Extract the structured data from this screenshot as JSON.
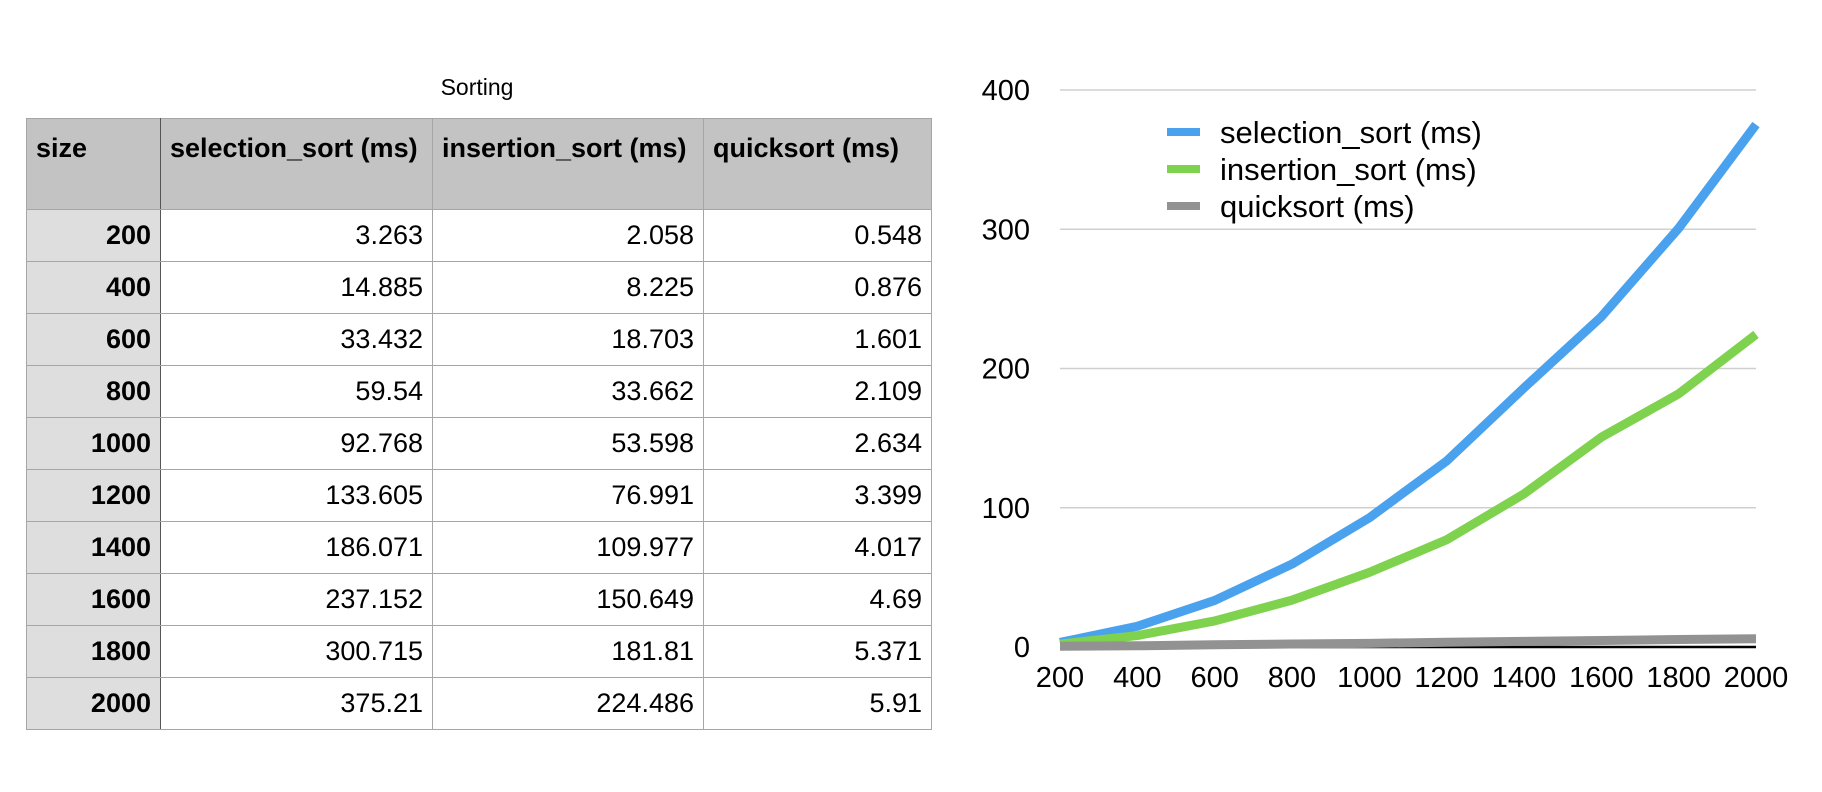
{
  "table": {
    "title": "Sorting",
    "headers": [
      "size",
      "selection_sort (ms)",
      "insertion_sort (ms)",
      "quicksort (ms)"
    ],
    "rows": [
      [
        "200",
        "3.263",
        "2.058",
        "0.548"
      ],
      [
        "400",
        "14.885",
        "8.225",
        "0.876"
      ],
      [
        "600",
        "33.432",
        "18.703",
        "1.601"
      ],
      [
        "800",
        "59.54",
        "33.662",
        "2.109"
      ],
      [
        "1000",
        "92.768",
        "53.598",
        "2.634"
      ],
      [
        "1200",
        "133.605",
        "76.991",
        "3.399"
      ],
      [
        "1400",
        "186.071",
        "109.977",
        "4.017"
      ],
      [
        "1600",
        "237.152",
        "150.649",
        "4.69"
      ],
      [
        "1800",
        "300.715",
        "181.81",
        "5.371"
      ],
      [
        "2000",
        "375.21",
        "224.486",
        "5.91"
      ]
    ]
  },
  "chart_data": {
    "type": "line",
    "x": [
      200,
      400,
      600,
      800,
      1000,
      1200,
      1400,
      1600,
      1800,
      2000
    ],
    "series": [
      {
        "name": "selection_sort (ms)",
        "color": "#4aa2ee",
        "values": [
          3.263,
          14.885,
          33.432,
          59.54,
          92.768,
          133.605,
          186.071,
          237.152,
          300.715,
          375.21
        ]
      },
      {
        "name": "insertion_sort (ms)",
        "color": "#7ed24e",
        "values": [
          2.058,
          8.225,
          18.703,
          33.662,
          53.598,
          76.991,
          109.977,
          150.649,
          181.81,
          224.486
        ]
      },
      {
        "name": "quicksort (ms)",
        "color": "#929292",
        "values": [
          0.548,
          0.876,
          1.601,
          2.109,
          2.634,
          3.399,
          4.017,
          4.69,
          5.371,
          5.91
        ]
      }
    ],
    "xlim": [
      200,
      2000
    ],
    "ylim": [
      0,
      400
    ],
    "yticks": [
      0,
      100,
      200,
      300,
      400
    ],
    "xticks": [
      200,
      400,
      600,
      800,
      1000,
      1200,
      1400,
      1600,
      1800,
      2000
    ],
    "grid": true,
    "legend": "top-left",
    "gridline_color": "#d0d0d0",
    "axis_color": "#000000"
  }
}
